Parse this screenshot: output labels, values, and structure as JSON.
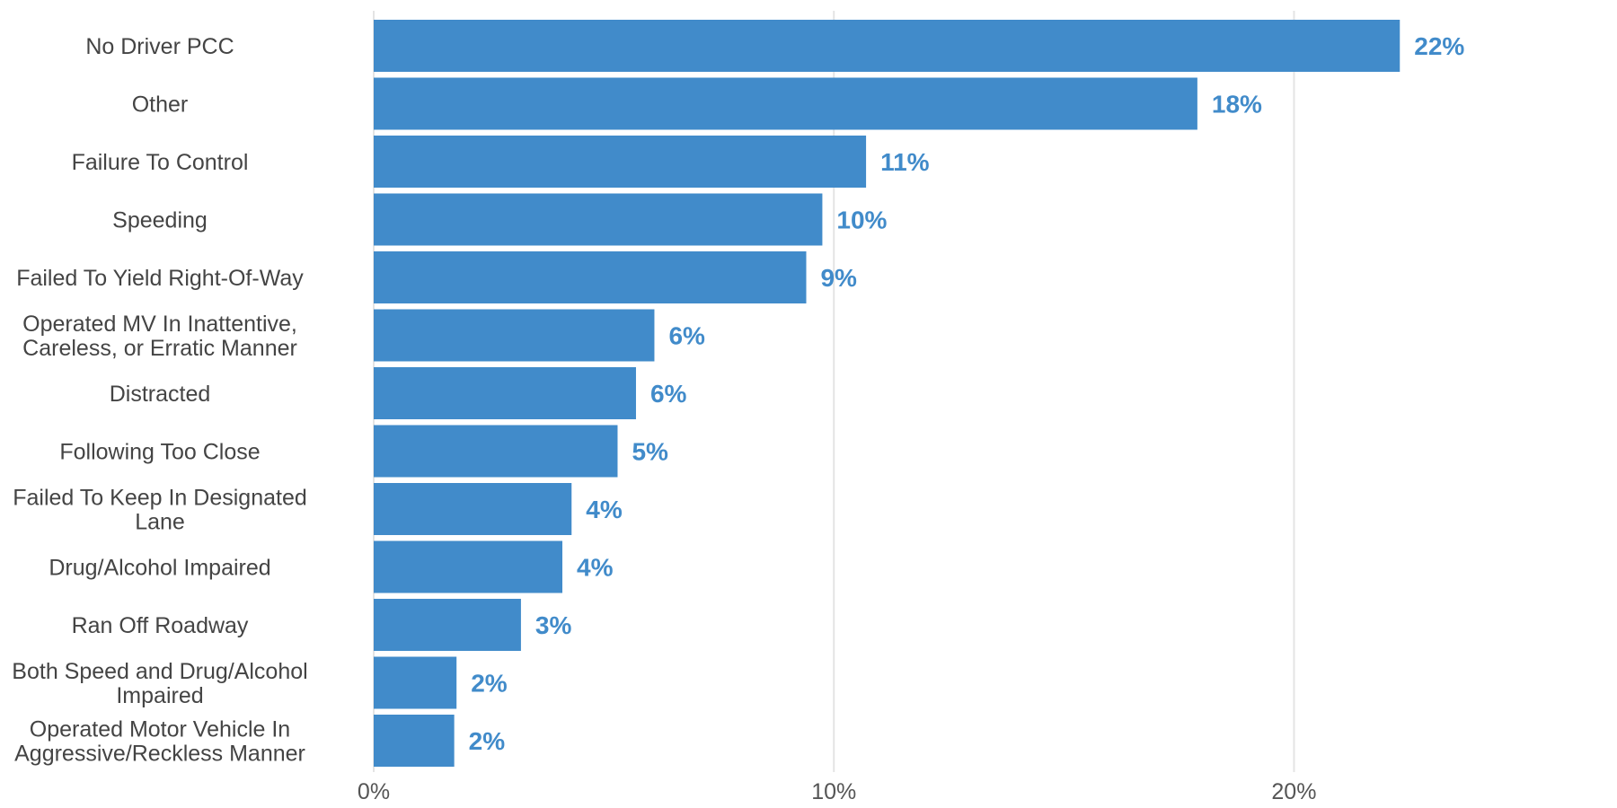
{
  "chart_data": {
    "type": "bar",
    "orientation": "horizontal",
    "categories": [
      "No Driver PCC",
      "Other",
      "Failure To Control",
      "Speeding",
      "Failed To Yield Right-Of-Way",
      "Operated MV In Inattentive, Careless, or Erratic Manner",
      "Distracted",
      "Following Too Close",
      "Failed To Keep In Designated Lane",
      "Drug/Alcohol Impaired",
      "Ran Off Roadway",
      "Both Speed and Drug/Alcohol Impaired",
      "Operated Motor Vehicle In Aggressive/Reckless Manner"
    ],
    "category_label_lines": [
      [
        "No Driver PCC"
      ],
      [
        "Other"
      ],
      [
        "Failure To Control"
      ],
      [
        "Speeding"
      ],
      [
        "Failed To Yield Right-Of-Way"
      ],
      [
        "Operated MV In Inattentive,",
        "Careless, or Erratic Manner"
      ],
      [
        "Distracted"
      ],
      [
        "Following Too Close"
      ],
      [
        "Failed To Keep In Designated",
        "Lane"
      ],
      [
        "Drug/Alcohol Impaired"
      ],
      [
        "Ran Off Roadway"
      ],
      [
        "Both Speed and Drug/Alcohol",
        "Impaired"
      ],
      [
        "Operated Motor Vehicle In",
        "Aggressive/Reckless Manner"
      ]
    ],
    "values": [
      22.3,
      17.9,
      10.7,
      9.75,
      9.4,
      6.1,
      5.7,
      5.3,
      4.3,
      4.1,
      3.2,
      1.8,
      1.75
    ],
    "value_labels": [
      "22%",
      "18%",
      "11%",
      "10%",
      "9%",
      "6%",
      "6%",
      "5%",
      "4%",
      "4%",
      "3%",
      "2%",
      "2%"
    ],
    "x_ticks": [
      0,
      10,
      20
    ],
    "x_tick_labels": [
      "0%",
      "10%",
      "20%"
    ],
    "xlim": [
      0,
      27
    ],
    "grid": true,
    "legend": "none",
    "title": "",
    "xlabel": "",
    "ylabel": "",
    "colors": {
      "bar": "#418BCA",
      "value_label": "#418BCA",
      "grid": "#E4E4E4"
    }
  }
}
